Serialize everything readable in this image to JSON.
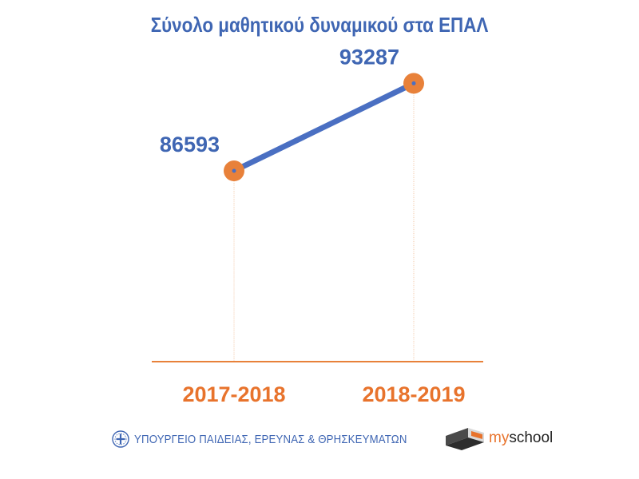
{
  "title": "Σύνολο μαθητικού δυναμικού στα ΕΠΑΛ",
  "chart_data": {
    "type": "line",
    "categories": [
      "2017-2018",
      "2018-2019"
    ],
    "series": [
      {
        "values": [
          86593,
          93287
        ]
      }
    ],
    "data_labels": [
      "86593",
      "93287"
    ],
    "ylim": [
      72000,
      96000
    ],
    "grid": false,
    "legend": "none",
    "line_color": "#4a6fc2",
    "marker_color": "#e8813a",
    "axis_color": "#e8813a",
    "category_color": "#e8732c",
    "label_color": "#3f66b3"
  },
  "footer": {
    "ministry": "ΥΠΟΥΡΓΕΙΟ ΠΑΙΔΕΙΑΣ, ΕΡΕΥΝΑΣ & ΘΡΗΣΚΕΥΜΑΤΩΝ",
    "ministry_logo_icon": "greek-emblem-icon",
    "brand": "myschool",
    "brand_part_highlight": "my",
    "brand_part_rest": "school",
    "brand_logo_icon": "myschool-logo-icon"
  }
}
